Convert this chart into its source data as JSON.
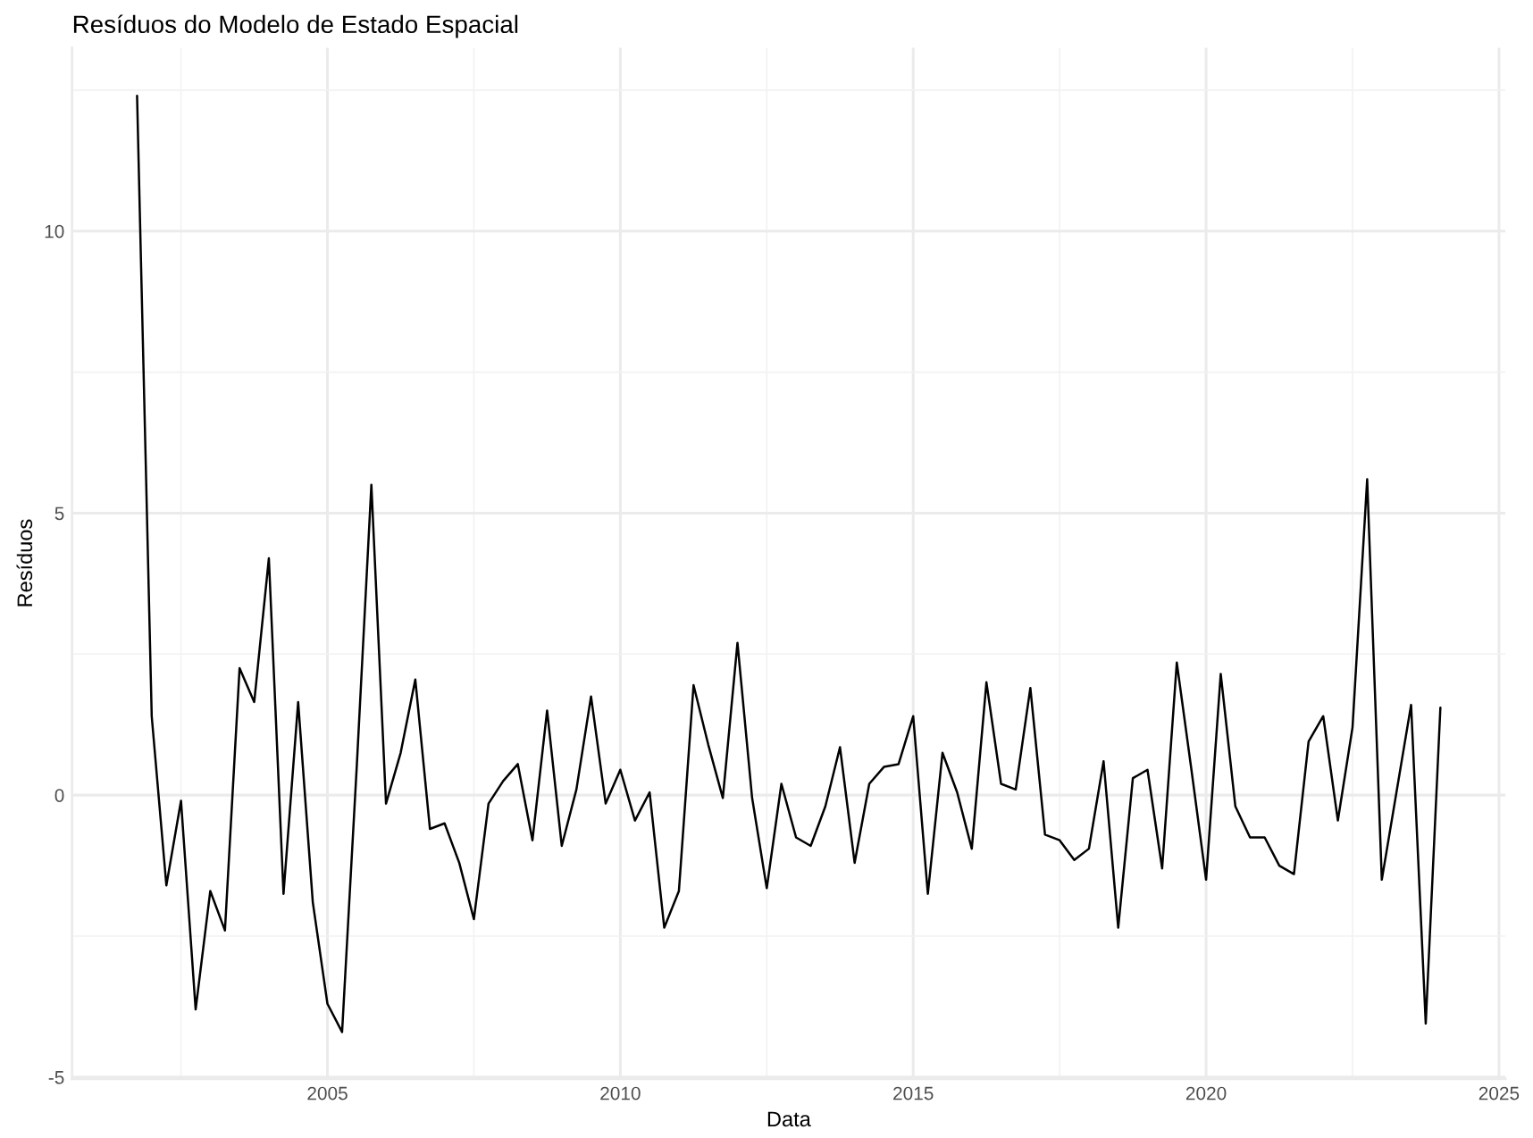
{
  "chart_data": {
    "type": "line",
    "title": "Resíduos do Modelo de Estado Espacial",
    "xlabel": "Data",
    "ylabel": "Resíduos",
    "x": [
      2001.75,
      2002.0,
      2002.25,
      2002.5,
      2002.75,
      2003.0,
      2003.25,
      2003.5,
      2003.75,
      2004.0,
      2004.25,
      2004.5,
      2004.75,
      2005.0,
      2005.25,
      2005.5,
      2005.75,
      2006.0,
      2006.25,
      2006.5,
      2006.75,
      2007.0,
      2007.25,
      2007.5,
      2007.75,
      2008.0,
      2008.25,
      2008.5,
      2008.75,
      2009.0,
      2009.25,
      2009.5,
      2009.75,
      2010.0,
      2010.25,
      2010.5,
      2010.75,
      2011.0,
      2011.25,
      2011.5,
      2011.75,
      2012.0,
      2012.25,
      2012.5,
      2012.75,
      2013.0,
      2013.25,
      2013.5,
      2013.75,
      2014.0,
      2014.25,
      2014.5,
      2014.75,
      2015.0,
      2015.25,
      2015.5,
      2015.75,
      2016.0,
      2016.25,
      2016.5,
      2016.75,
      2017.0,
      2017.25,
      2017.5,
      2017.75,
      2018.0,
      2018.25,
      2018.5,
      2018.75,
      2019.0,
      2019.25,
      2019.5,
      2019.75,
      2020.0,
      2020.25,
      2020.5,
      2020.75,
      2021.0,
      2021.25,
      2021.5,
      2021.75,
      2022.0,
      2022.25,
      2022.5,
      2022.75,
      2023.0,
      2023.25,
      2023.5,
      2023.75,
      2024.0
    ],
    "series": [
      {
        "color": "#000000",
        "values": [
          12.4,
          1.4,
          -1.6,
          -0.1,
          -3.8,
          -1.7,
          -2.4,
          2.25,
          1.65,
          4.2,
          -1.75,
          1.65,
          -1.9,
          -3.7,
          -4.2,
          0.5,
          5.5,
          -0.15,
          0.75,
          2.05,
          -0.6,
          -0.5,
          -1.2,
          -2.2,
          -0.15,
          0.25,
          0.55,
          -0.8,
          1.5,
          -0.9,
          0.1,
          1.75,
          -0.15,
          0.45,
          -0.45,
          0.05,
          -2.35,
          -1.7,
          1.95,
          0.9,
          -0.05,
          2.7,
          -0.05,
          -1.65,
          0.2,
          -0.75,
          -0.9,
          -0.2,
          0.85,
          -1.2,
          0.2,
          0.5,
          0.55,
          1.4,
          -1.75,
          0.75,
          0.05,
          -0.95,
          2.0,
          0.2,
          0.1,
          1.9,
          -0.7,
          -0.8,
          -1.15,
          -0.95,
          0.6,
          -2.35,
          0.3,
          0.45,
          -1.3,
          2.35,
          0.45,
          -1.5,
          2.15,
          -0.2,
          -0.75,
          -0.75,
          -1.25,
          -1.4,
          0.95,
          1.4,
          -0.45,
          1.2,
          5.6,
          -1.5,
          0.05,
          1.6,
          -4.05,
          1.55
        ]
      }
    ],
    "xlim": [
      2000.64,
      2025.11
    ],
    "ylim": [
      -5.03,
      13.25
    ],
    "xticks": [
      {
        "value": 2002.5,
        "label": null
      },
      2005,
      {
        "value": 2007.5,
        "label": null
      },
      2010,
      {
        "value": 2012.5,
        "label": null
      },
      2015,
      {
        "value": 2017.5,
        "label": null
      },
      2020,
      {
        "value": 2022.5,
        "label": null
      },
      2025
    ],
    "yticks": [
      -5,
      {
        "value": -2.5,
        "label": null
      },
      0,
      {
        "value": 2.5,
        "label": null
      },
      5,
      {
        "value": 7.5,
        "label": null
      },
      10,
      {
        "value": 12.5,
        "label": null
      }
    ],
    "grid": true
  }
}
